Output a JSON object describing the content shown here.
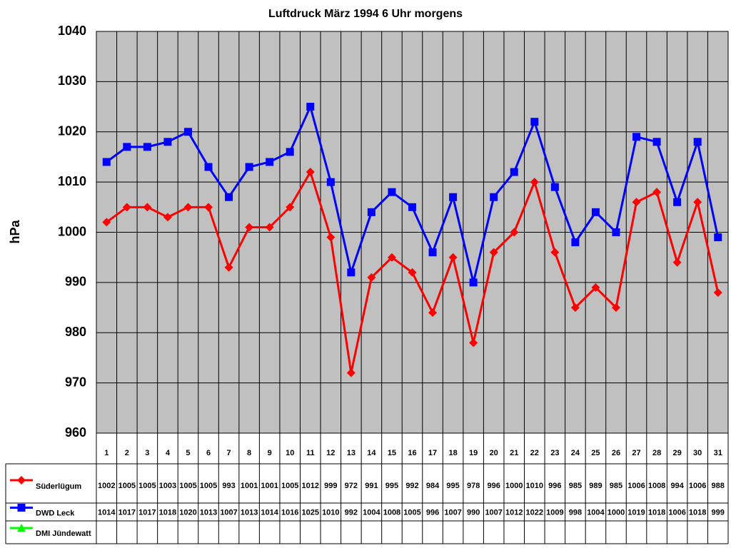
{
  "chart_data": {
    "type": "line",
    "title": "Luftdruck März 1994 6 Uhr morgens",
    "y_label": "hPa",
    "categories": [
      "1",
      "2",
      "3",
      "4",
      "5",
      "6",
      "7",
      "8",
      "9",
      "10",
      "11",
      "12",
      "13",
      "14",
      "15",
      "16",
      "17",
      "18",
      "19",
      "20",
      "21",
      "22",
      "23",
      "24",
      "25",
      "26",
      "27",
      "28",
      "29",
      "30",
      "31"
    ],
    "series": [
      {
        "name": "Süderlügum",
        "color": "#ff0000",
        "marker": "diamond",
        "values": [
          1002,
          1005,
          1005,
          1003,
          1005,
          1005,
          993,
          1001,
          1001,
          1005,
          1012,
          999,
          972,
          991,
          995,
          992,
          984,
          995,
          978,
          996,
          1000,
          1010,
          996,
          985,
          989,
          985,
          1006,
          1008,
          994,
          1006,
          988
        ]
      },
      {
        "name": "DWD Leck",
        "color": "#0000ff",
        "marker": "square",
        "values": [
          1014,
          1017,
          1017,
          1018,
          1020,
          1013,
          1007,
          1013,
          1014,
          1016,
          1025,
          1010,
          992,
          1004,
          1008,
          1005,
          996,
          1007,
          990,
          1007,
          1012,
          1022,
          1009,
          998,
          1004,
          1000,
          1019,
          1018,
          1006,
          1018,
          999
        ]
      },
      {
        "name": "DMI Jündewatt",
        "color": "#00ff00",
        "marker": "triangle",
        "values": [
          null,
          null,
          null,
          null,
          null,
          null,
          null,
          null,
          null,
          null,
          null,
          null,
          null,
          null,
          null,
          null,
          null,
          null,
          null,
          null,
          null,
          null,
          null,
          null,
          null,
          null,
          null,
          null,
          null,
          null,
          null
        ]
      }
    ],
    "ylim": [
      960,
      1040
    ],
    "yticks": [
      960,
      970,
      980,
      990,
      1000,
      1010,
      1020,
      1030,
      1040
    ],
    "grid": true,
    "plot_background": "#c0c0c0"
  }
}
